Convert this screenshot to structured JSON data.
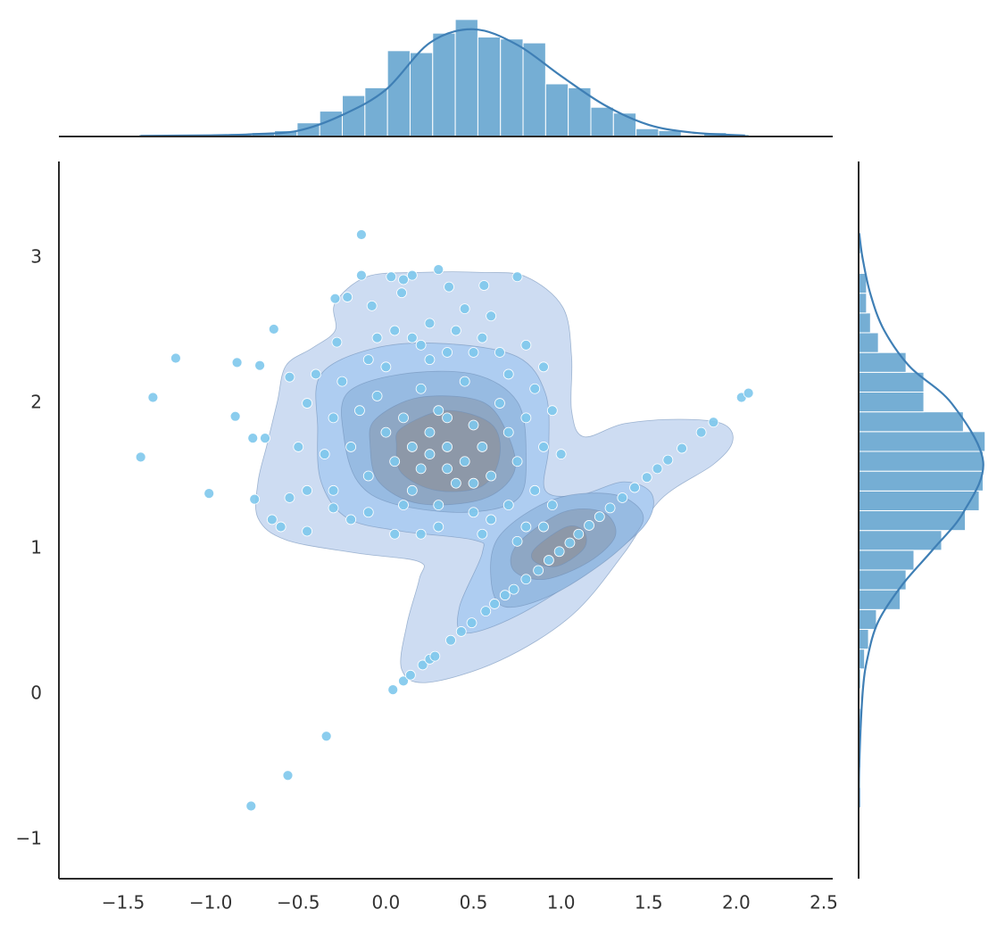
{
  "chart_data": [
    {
      "type": "scatter",
      "color": "#7ec8ec",
      "xlim": [
        -1.867,
        2.551
      ],
      "ylim": [
        -1.27,
        3.663
      ],
      "xticks": [
        {
          "value": -1.5,
          "label": "−1.5"
        },
        {
          "value": -1.0,
          "label": "−1.0"
        },
        {
          "value": -0.5,
          "label": "−0.5"
        },
        {
          "value": 0,
          "label": "0.0"
        },
        0.5,
        {
          "value": 1,
          "label": "1.0"
        },
        1.5,
        {
          "value": 2,
          "label": "2.0"
        },
        2.5
      ],
      "yticks": [
        {
          "value": -1,
          "label": "−1"
        },
        0,
        1,
        2,
        3
      ],
      "x": [
        -1.4,
        -1.33,
        -1.2,
        -1.01,
        -0.86,
        -0.85,
        -0.72,
        -0.76,
        -0.69,
        -0.75,
        -0.64,
        -0.14,
        -0.14,
        0.03,
        0.15,
        0.3,
        0.75,
        -0.29,
        -0.22,
        0.1,
        0.09,
        0.36,
        0.56,
        -0.08,
        -0.28,
        -0.34,
        -0.56,
        -0.77,
        0.04,
        0.1,
        0.14,
        0.21,
        0.25,
        0.28,
        0.37,
        0.43,
        0.49,
        0.57,
        0.62,
        0.68,
        0.73,
        0.8,
        0.87,
        0.93,
        0.99,
        1.05,
        1.1,
        1.16,
        1.22,
        1.28,
        1.35,
        1.42,
        1.49,
        1.55,
        1.61,
        1.69,
        1.8,
        1.87,
        2.03,
        2.07,
        0.35,
        0.25,
        0.45,
        0.2,
        0.5,
        0.3,
        0.15,
        0.55,
        0.4,
        0.1,
        0.6,
        0.05,
        0.7,
        0.65,
        0.0,
        -0.05,
        0.2,
        0.45,
        0.75,
        0.8,
        -0.1,
        -0.2,
        -0.15,
        0.0,
        0.25,
        0.5,
        0.7,
        0.85,
        0.9,
        0.85,
        0.7,
        0.5,
        0.3,
        0.1,
        -0.1,
        -0.3,
        -0.35,
        -0.3,
        -0.25,
        -0.1,
        0.15,
        0.4,
        0.6,
        0.8,
        0.95,
        1.0,
        0.95,
        0.8,
        0.55,
        0.3,
        0.05,
        -0.2,
        -0.45,
        -0.5,
        -0.45,
        -0.4,
        -0.55,
        -0.55,
        -0.6,
        -0.45,
        -0.3,
        -0.65,
        0.2,
        0.35,
        0.55,
        0.45,
        0.25,
        0.05,
        -0.05,
        0.65,
        0.9,
        0.75,
        0.9,
        0.2,
        0.15,
        0.35,
        0.5,
        0.6,
        0.35,
        0.25
      ],
      "y": [
        1.63,
        2.04,
        2.31,
        1.38,
        1.91,
        2.28,
        2.26,
        1.76,
        1.76,
        1.34,
        2.51,
        3.16,
        2.88,
        2.87,
        2.88,
        2.92,
        2.87,
        2.72,
        2.73,
        2.85,
        2.76,
        2.8,
        2.81,
        2.67,
        2.42,
        -0.29,
        -0.56,
        -0.77,
        0.03,
        0.09,
        0.13,
        0.2,
        0.24,
        0.26,
        0.37,
        0.43,
        0.49,
        0.57,
        0.62,
        0.68,
        0.72,
        0.79,
        0.85,
        0.92,
        0.98,
        1.04,
        1.1,
        1.16,
        1.22,
        1.28,
        1.35,
        1.42,
        1.49,
        1.55,
        1.61,
        1.69,
        1.8,
        1.87,
        2.04,
        2.07,
        1.7,
        1.8,
        1.6,
        1.55,
        1.85,
        1.95,
        1.7,
        1.7,
        1.45,
        1.9,
        1.5,
        1.6,
        1.8,
        2.0,
        1.8,
        2.05,
        2.1,
        2.15,
        1.6,
        1.9,
        1.5,
        1.7,
        1.95,
        2.25,
        2.3,
        2.35,
        2.2,
        2.1,
        1.7,
        1.4,
        1.3,
        1.25,
        1.3,
        1.3,
        1.25,
        1.4,
        1.65,
        1.9,
        2.15,
        2.3,
        2.45,
        2.5,
        2.6,
        2.4,
        1.95,
        1.65,
        1.3,
        1.15,
        1.1,
        1.15,
        1.1,
        1.2,
        1.4,
        1.7,
        2.0,
        2.2,
        2.18,
        1.35,
        1.15,
        1.12,
        1.28,
        1.2,
        2.4,
        2.35,
        2.45,
        2.65,
        2.55,
        2.5,
        2.45,
        2.35,
        2.25,
        1.05,
        1.15,
        1.1,
        1.4,
        1.55,
        1.45,
        1.2,
        1.9,
        1.65
      ],
      "contours": [
        {
          "color": "#cddcf2",
          "x": [
            -0.29,
            -0.11,
            0.19,
            0.55,
            0.8,
            1.01,
            1.06,
            1.06,
            1.13,
            1.36,
            1.67,
            1.92,
            1.98,
            1.87,
            1.57,
            1.36,
            1.06,
            0.65,
            0.24,
            0.09,
            0.12,
            0.19,
            0.19,
            -0.17,
            -0.57,
            -0.73,
            -0.73,
            -0.68,
            -0.62,
            -0.57,
            -0.42,
            -0.29
          ],
          "y": [
            2.69,
            2.87,
            2.9,
            2.9,
            2.87,
            2.66,
            2.32,
            1.95,
            1.77,
            1.86,
            1.89,
            1.86,
            1.74,
            1.58,
            1.34,
            0.97,
            0.54,
            0.23,
            0.08,
            0.17,
            0.48,
            0.79,
            0.91,
            0.97,
            1.06,
            1.21,
            1.46,
            1.71,
            2.01,
            2.26,
            2.38,
            2.5
          ]
        },
        {
          "color": "#aecdf1",
          "x": [
            -0.37,
            -0.06,
            0.34,
            0.75,
            0.91,
            0.93,
            0.91,
            1.11,
            1.36,
            1.52,
            1.47,
            1.16,
            0.75,
            0.45,
            0.42,
            0.55,
            0.5,
            0.09,
            -0.22,
            -0.37,
            -0.39
          ],
          "y": [
            2.2,
            2.38,
            2.41,
            2.32,
            2.07,
            1.71,
            1.4,
            1.37,
            1.46,
            1.37,
            1.15,
            0.85,
            0.54,
            0.42,
            0.6,
            0.97,
            1.06,
            1.12,
            1.21,
            1.46,
            1.83
          ]
        },
        {
          "color": "#97bbe2",
          "x": [
            -0.22,
            0.09,
            0.5,
            0.75,
            0.8,
            0.75,
            0.45,
            0.04,
            -0.16,
            -0.24
          ],
          "y": [
            2.07,
            2.2,
            2.2,
            2.01,
            1.64,
            1.34,
            1.25,
            1.31,
            1.46,
            1.77
          ]
        },
        {
          "color": "#97bbe2",
          "x": [
            0.65,
            0.96,
            1.31,
            1.47,
            1.31,
            0.96,
            0.68,
            0.6
          ],
          "y": [
            1.09,
            1.34,
            1.37,
            1.21,
            0.97,
            0.69,
            0.6,
            0.79
          ]
        },
        {
          "color": "#8ea7c4",
          "x": [
            -0.06,
            0.19,
            0.55,
            0.7,
            0.73,
            0.55,
            0.19,
            -0.04,
            -0.09
          ],
          "y": [
            1.89,
            2.04,
            2.01,
            1.77,
            1.52,
            1.34,
            1.31,
            1.46,
            1.71
          ]
        },
        {
          "color": "#8ea7c4",
          "x": [
            0.75,
            1.01,
            1.24,
            1.31,
            1.16,
            0.91,
            0.73
          ],
          "y": [
            1.03,
            1.25,
            1.25,
            1.09,
            0.91,
            0.79,
            0.85
          ]
        },
        {
          "color": "#8d98a8",
          "x": [
            0.09,
            0.34,
            0.6,
            0.65,
            0.55,
            0.29,
            0.09,
            0.06
          ],
          "y": [
            1.83,
            1.95,
            1.86,
            1.64,
            1.43,
            1.4,
            1.52,
            1.71
          ]
        },
        {
          "color": "#8d98a8",
          "x": [
            0.85,
            1.03,
            1.13,
            1.13,
            0.98,
            0.85
          ],
          "y": [
            1.0,
            1.15,
            1.12,
            1.0,
            0.88,
            0.91
          ]
        }
      ]
    },
    {
      "type": "histogram",
      "orientation": "vertical",
      "color": "#75aed4",
      "ylim": [
        0,
        70
      ],
      "bins": [
        -1.41,
        -1.281,
        -1.152,
        -1.023,
        -0.894,
        -0.765,
        -0.636,
        -0.507,
        -0.378,
        -0.249,
        -0.12,
        0.009,
        0.138,
        0.267,
        0.396,
        0.525,
        0.654,
        0.783,
        0.912,
        1.041,
        1.17,
        1.299,
        1.428,
        1.557,
        1.686,
        1.815,
        1.944,
        2.073
      ],
      "counts": [
        1,
        1,
        0,
        1,
        1,
        2,
        3,
        7,
        13,
        21,
        25,
        44,
        43,
        53,
        60,
        51,
        50,
        48,
        27,
        25,
        15,
        12,
        4,
        3,
        0,
        2,
        1
      ],
      "kde": {
        "color": "#3f7fb5",
        "x": [
          -1.4,
          -1.0,
          -0.75,
          -0.5,
          -0.25,
          0,
          0.25,
          0.5,
          0.75,
          1.0,
          1.25,
          1.5,
          1.75,
          2.05
        ],
        "y": [
          0.3,
          0.6,
          1.2,
          3,
          11,
          24,
          48,
          55,
          47,
          31,
          16,
          6,
          2,
          0.5
        ]
      }
    },
    {
      "type": "histogram",
      "orientation": "horizontal",
      "color": "#75aed4",
      "xlim": [
        0,
        70
      ],
      "bins": [
        -0.779,
        -0.643,
        -0.507,
        -0.371,
        -0.235,
        -0.099,
        0.037,
        0.173,
        0.309,
        0.445,
        0.581,
        0.717,
        0.853,
        0.989,
        1.125,
        1.261,
        1.397,
        1.533,
        1.669,
        1.805,
        1.941,
        2.077,
        2.213,
        2.349,
        2.485,
        2.621,
        2.757,
        2.893,
        3.029,
        3.165
      ],
      "counts": [
        1,
        0,
        1,
        0,
        1,
        0,
        1,
        3,
        5,
        9,
        21,
        24,
        28,
        42,
        54,
        61,
        63,
        63,
        64,
        53,
        33,
        33,
        24,
        10,
        6,
        4,
        4,
        0,
        1
      ],
      "kde": {
        "color": "#3f7fb5",
        "y": [
          -0.78,
          -0.5,
          0,
          0.25,
          0.5,
          0.75,
          1.0,
          1.25,
          1.6,
          2.0,
          2.25,
          2.5,
          2.75,
          3.0,
          3.17
        ],
        "x": [
          0.2,
          0.3,
          2,
          4.5,
          10,
          22,
          38,
          53,
          63,
          47,
          26,
          13,
          6,
          2,
          0.3
        ]
      }
    }
  ]
}
